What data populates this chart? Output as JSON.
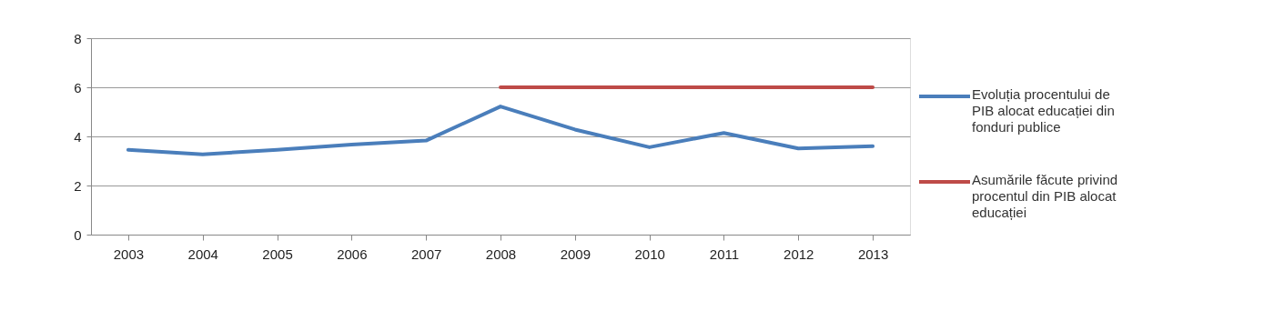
{
  "chart_data": {
    "type": "line",
    "categories": [
      "2003",
      "2004",
      "2005",
      "2006",
      "2007",
      "2008",
      "2009",
      "2010",
      "2011",
      "2012",
      "2013"
    ],
    "series": [
      {
        "name": "Evoluția procentului de PIB alocat educației din fonduri publice",
        "color": "#4a7ebb",
        "values": [
          3.45,
          3.27,
          3.45,
          3.67,
          3.83,
          5.22,
          4.28,
          3.56,
          4.14,
          3.51,
          3.6
        ]
      },
      {
        "name": "Asumările făcute privind procentul din PIB alocat educației",
        "color": "#be4b48",
        "values": [
          null,
          null,
          null,
          null,
          null,
          6,
          6,
          6,
          6,
          6,
          6
        ]
      }
    ],
    "ylim": [
      0,
      8
    ],
    "yticks": [
      0,
      2,
      4,
      6,
      8
    ],
    "grid": "y",
    "legend": "right",
    "marker": "none",
    "line_style": "solid"
  }
}
